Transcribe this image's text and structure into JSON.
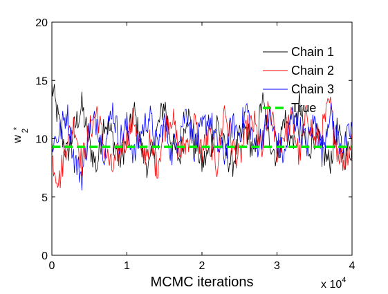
{
  "chart_data": {
    "type": "line",
    "xlabel": "MCMC iterations",
    "ylabel": "w",
    "ylabel_superscript": "*",
    "ylabel_subscript": "2",
    "x_multiplier_base": "x 10",
    "x_multiplier_exp": "4",
    "xlim": [
      0,
      4
    ],
    "ylim": [
      0,
      20
    ],
    "xticks": [
      0,
      1,
      2,
      3,
      4
    ],
    "xtick_labels": [
      "0",
      "1",
      "2",
      "3",
      "4"
    ],
    "yticks": [
      0,
      5,
      10,
      15,
      20
    ],
    "ytick_labels": [
      "0",
      "5",
      "10",
      "15",
      "20"
    ],
    "grid": false,
    "legend_position": "top-right",
    "x": [
      0,
      0.1,
      0.2,
      0.3,
      0.4,
      0.5,
      0.6,
      0.7,
      0.8,
      0.9,
      1.0,
      1.1,
      1.2,
      1.3,
      1.4,
      1.5,
      1.6,
      1.7,
      1.8,
      1.9,
      2.0,
      2.1,
      2.2,
      2.3,
      2.4,
      2.5,
      2.6,
      2.7,
      2.8,
      2.9,
      3.0,
      3.1,
      3.2,
      3.3,
      3.4,
      3.5,
      3.6,
      3.7,
      3.8,
      3.9,
      4.0
    ],
    "series": [
      {
        "name": "Chain 1",
        "color": "#000000",
        "style": "solid",
        "values": [
          14.5,
          11.2,
          8.6,
          10.9,
          12.8,
          9.4,
          7.6,
          11.7,
          10.3,
          8.1,
          9.8,
          12.2,
          8.9,
          7.4,
          10.6,
          13.1,
          9.5,
          8.3,
          12.4,
          10.0,
          7.8,
          8.8,
          11.5,
          9.1,
          7.7,
          9.9,
          10.8,
          8.2,
          13.4,
          10.1,
          8.4,
          11.9,
          9.6,
          12.9,
          8.7,
          10.4,
          9.0,
          7.9,
          10.7,
          8.5,
          9.3
        ]
      },
      {
        "name": "Chain 2",
        "color": "#ff0000",
        "style": "solid",
        "values": [
          8.3,
          6.4,
          9.8,
          11.3,
          7.9,
          10.6,
          12.4,
          9.2,
          7.3,
          8.8,
          10.2,
          11.8,
          8.1,
          9.6,
          7.5,
          10.9,
          12.1,
          8.6,
          9.7,
          11.4,
          8.9,
          10.3,
          7.6,
          12.6,
          9.4,
          8.2,
          10.8,
          11.2,
          8.7,
          12.9,
          9.1,
          10.5,
          11.7,
          8.4,
          12.3,
          9.8,
          10.6,
          13.0,
          9.2,
          8.0,
          10.1
        ]
      },
      {
        "name": "Chain 3",
        "color": "#0000ff",
        "style": "solid",
        "values": [
          9.6,
          10.4,
          12.3,
          8.2,
          6.8,
          10.9,
          11.6,
          8.9,
          12.8,
          9.9,
          11.1,
          8.5,
          10.7,
          12.0,
          9.3,
          11.4,
          8.7,
          10.6,
          12.5,
          9.2,
          10.8,
          11.9,
          9.4,
          8.6,
          11.2,
          10.5,
          12.7,
          9.0,
          10.3,
          11.8,
          9.7,
          8.4,
          12.2,
          10.9,
          9.5,
          11.6,
          8.8,
          12.4,
          10.0,
          9.3,
          11.0
        ]
      },
      {
        "name": "True",
        "color": "#00ee00",
        "style": "dashed",
        "values": [
          9.3,
          9.3,
          9.3,
          9.3,
          9.3,
          9.3,
          9.3,
          9.3,
          9.3,
          9.3,
          9.3,
          9.3,
          9.3,
          9.3,
          9.3,
          9.3,
          9.3,
          9.3,
          9.3,
          9.3,
          9.3,
          9.3,
          9.3,
          9.3,
          9.3,
          9.3,
          9.3,
          9.3,
          9.3,
          9.3,
          9.3,
          9.3,
          9.3,
          9.3,
          9.3,
          9.3,
          9.3,
          9.3,
          9.3,
          9.3,
          9.3
        ]
      }
    ]
  }
}
